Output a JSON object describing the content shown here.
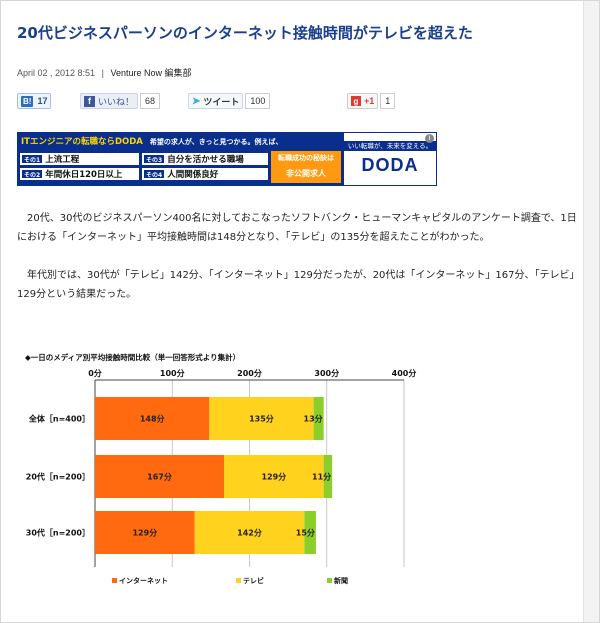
{
  "article": {
    "title": "20代ビジネスパーソンのインターネット接触時間がテレビを超えた",
    "date": "April 02 , 2012 8:51",
    "separator": "|",
    "author": "Venture Now 編集部",
    "paragraphs": [
      "20代、30代のビジネスパーソン400名に対しておこなったソフトバンク・ヒューマンキャピタルのアンケート調査で、1日における「インターネット」平均接触時間は148分となり、「テレビ」の135分を超えたことがわかった。",
      "年代別では、30代が「テレビ」142分、「インターネット」129分だったが、20代は「インターネット」167分、「テレビ」129分という結果だった。"
    ]
  },
  "social": {
    "hatena": {
      "logo": "B!",
      "count": "17"
    },
    "facebook": {
      "logo": "f",
      "label": "いいね！",
      "count": "68"
    },
    "twitter": {
      "label": "ツイート",
      "count": "100"
    },
    "gplus": {
      "logo": "g",
      "label": "+1",
      "count": "1"
    }
  },
  "ad": {
    "headline_prefix": "ITエンジニアの転職ならDODA",
    "headline_rest": "希望の求人が、きっと見つかる。例えば、",
    "items": [
      {
        "tag": "その1",
        "text": "上流工程"
      },
      {
        "tag": "その2",
        "text": "年間休日120日以上"
      },
      {
        "tag": "その3",
        "text": "自分を活かせる職場"
      },
      {
        "tag": "その4",
        "text": "人間関係良好"
      }
    ],
    "cta_small": "転職成功の秘訣は",
    "cta_big": "非公開求人",
    "tagline": "いい転職が、未来を変える。",
    "logo": "DODA",
    "info": "i"
  },
  "chart_data": {
    "type": "bar",
    "orientation": "horizontal",
    "stacked": true,
    "title": "◆一日のメディア別平均接触時間比較（単一回答形式より集計）",
    "categories": [
      "全体［n=400］",
      "20代［n=200］",
      "30代［n=200］"
    ],
    "series": [
      {
        "name": "インターネット",
        "values": [
          148,
          167,
          129
        ],
        "labels": [
          "148分",
          "167分",
          "129分"
        ],
        "color": "#ff6a10"
      },
      {
        "name": "テレビ",
        "values": [
          135,
          129,
          142
        ],
        "labels": [
          "135分",
          "129分",
          "142分"
        ],
        "color": "#ffd21e"
      },
      {
        "name": "新聞",
        "values": [
          13,
          11,
          15
        ],
        "labels": [
          "13分",
          "11分",
          "15分"
        ],
        "color": "#8ccf2a"
      }
    ],
    "xticks": [
      "0分",
      "100分",
      "200分",
      "300分",
      "400分"
    ],
    "xlim": [
      0,
      400
    ],
    "grid": true,
    "legend_position": "bottom"
  }
}
